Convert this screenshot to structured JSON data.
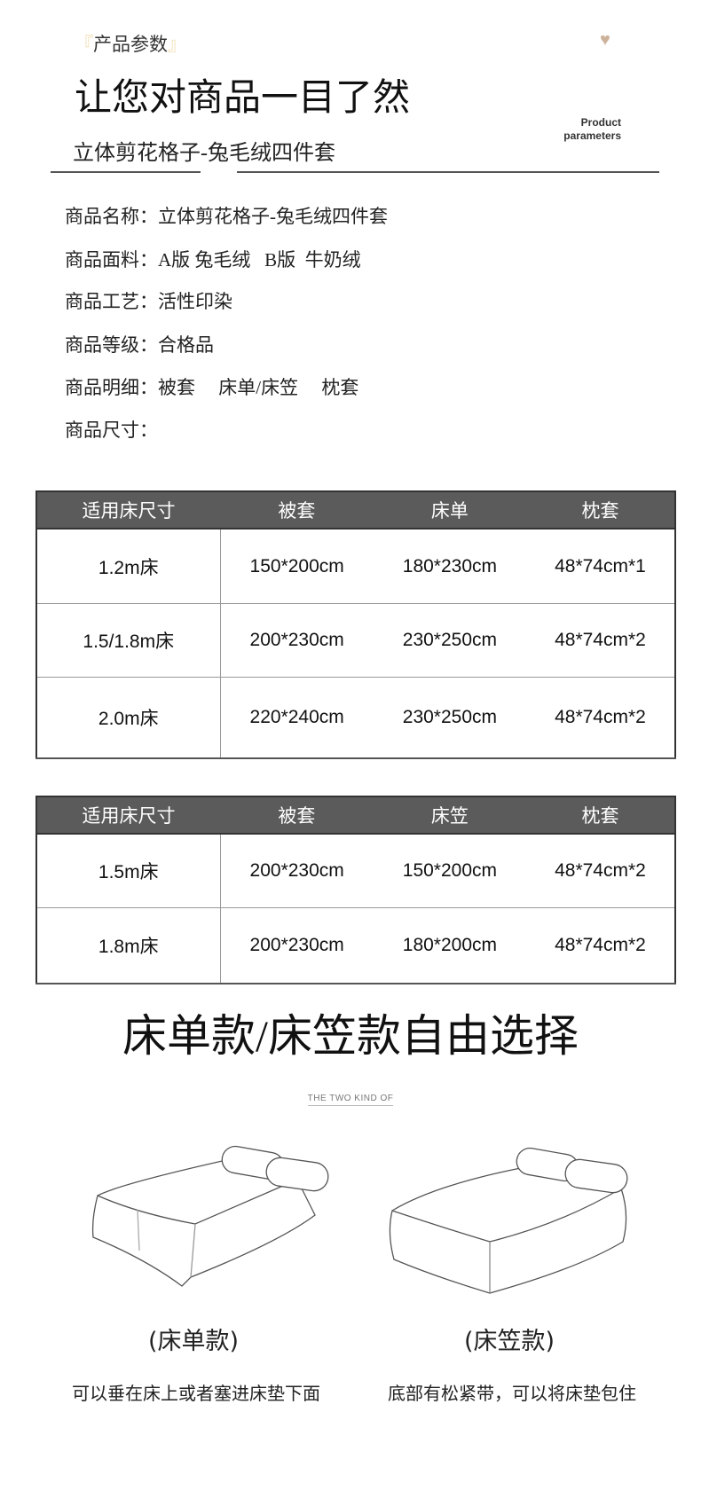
{
  "header": {
    "tag": "产品参数",
    "tag_open": "『",
    "tag_close": "』",
    "title": "让您对商品一目了然",
    "english_line1": "Product",
    "english_line2": "parameters",
    "subtitle": "立体剪花格子-兔毛绒四件套",
    "heart_icon": "heart-icon",
    "accent_color": "#cdb29b"
  },
  "specs": [
    {
      "label": "商品名称：",
      "value": "立体剪花格子-兔毛绒四件套"
    },
    {
      "label": "商品面料：",
      "value": "A版 兔毛绒   B版  牛奶绒"
    },
    {
      "label": "商品工艺：",
      "value": "活性印染"
    },
    {
      "label": "商品等级：",
      "value": "合格品"
    },
    {
      "label": "商品明细：",
      "value": "被套     床单/床笠     枕套"
    },
    {
      "label": "商品尺寸：",
      "value": ""
    }
  ],
  "table1": {
    "headers": [
      "适用床尺寸",
      "被套",
      "床单",
      "枕套"
    ],
    "rows": [
      [
        "1.2m床",
        "150*200cm",
        "180*230cm",
        "48*74cm*1"
      ],
      [
        "1.5/1.8m床",
        "200*230cm",
        "230*250cm",
        "48*74cm*2"
      ],
      [
        "2.0m床",
        "220*240cm",
        "230*250cm",
        "48*74cm*2"
      ]
    ]
  },
  "table2": {
    "headers": [
      "适用床尺寸",
      "被套",
      "床笠",
      "枕套"
    ],
    "rows": [
      [
        "1.5m床",
        "200*230cm",
        "150*200cm",
        "48*74cm*2"
      ],
      [
        "1.8m床",
        "200*230cm",
        "180*200cm",
        "48*74cm*2"
      ]
    ]
  },
  "choice": {
    "heading": "床单款/床笠款自由选择",
    "subheading": "THE TWO KIND OF",
    "options": [
      {
        "label": "(床单款)",
        "caption": "可以垂在床上或者塞进床垫下面"
      },
      {
        "label": "(床笠款)",
        "caption": "底部有松紧带，可以将床垫包住"
      }
    ]
  }
}
